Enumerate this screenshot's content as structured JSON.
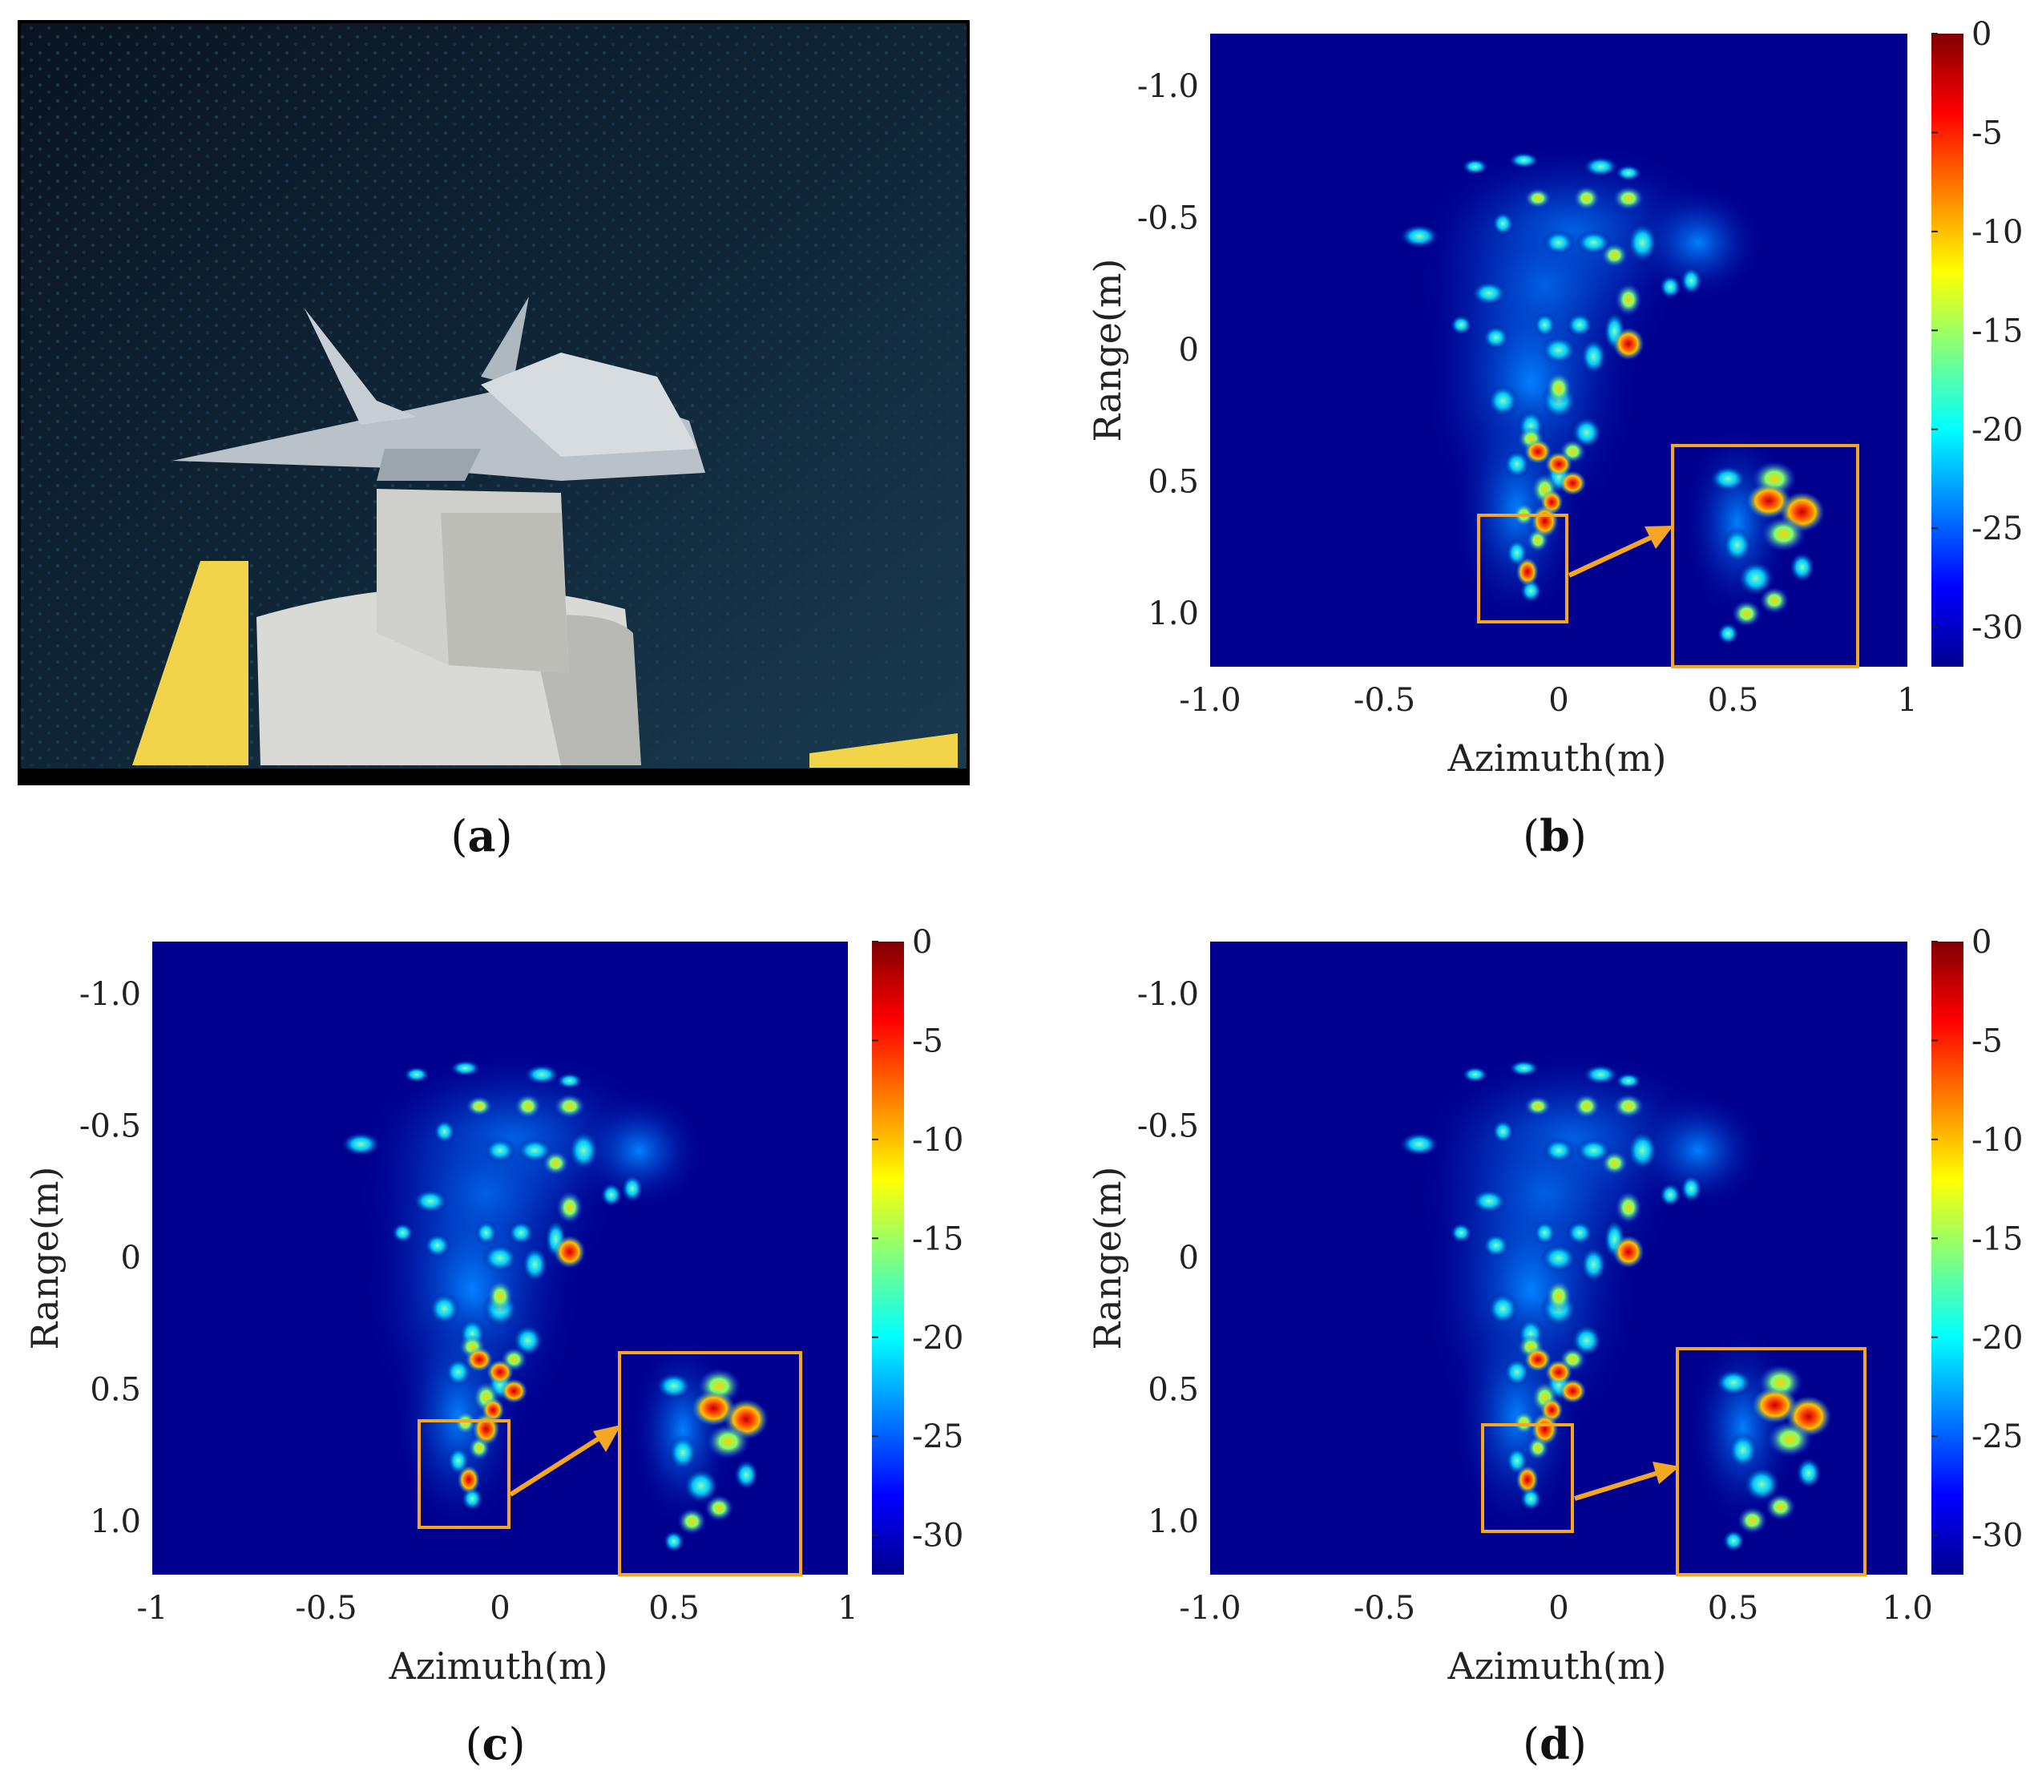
{
  "figure": {
    "panels": [
      {
        "label_open": "(",
        "label_letter": "a",
        "label_close": ")"
      },
      {
        "label_open": "(",
        "label_letter": "b",
        "label_close": ")"
      },
      {
        "label_open": "(",
        "label_letter": "c",
        "label_close": ")"
      },
      {
        "label_open": "(",
        "label_letter": "d",
        "label_close": ")"
      }
    ]
  },
  "colors": {
    "background": "#00008f",
    "zoom_box": "#f5a623",
    "frame": "#000000"
  },
  "chart_data": [
    {
      "panel": "b",
      "type": "heatmap",
      "xlabel": "Azimuth(m)",
      "ylabel": "Range(m)",
      "xlim": [
        -1.0,
        1.0
      ],
      "ylim": [
        -1.2,
        1.2
      ],
      "x_ticks": [
        "-1.0",
        "-0.5",
        "0",
        "0.5",
        "1"
      ],
      "y_ticks": [
        "-1.0",
        "-0.5",
        "0",
        "0.5",
        "1.0"
      ],
      "colorbar": {
        "range": [
          -32,
          0
        ],
        "ticks": [
          "0",
          "-5",
          "-10",
          "-15",
          "-20",
          "-25",
          "-30"
        ]
      },
      "zoom_box": {
        "azimuth": [
          -0.23,
          0.03
        ],
        "range": [
          0.62,
          1.02
        ]
      }
    },
    {
      "panel": "c",
      "type": "heatmap",
      "xlabel": "Azimuth(m)",
      "ylabel": "Range(m)",
      "xlim": [
        -1.0,
        1.0
      ],
      "ylim": [
        -1.2,
        1.2
      ],
      "x_ticks": [
        "-1",
        "-0.5",
        "0",
        "0.5",
        "1"
      ],
      "y_ticks": [
        "-1.0",
        "-0.5",
        "0",
        "0.5",
        "1.0"
      ],
      "colorbar": {
        "range": [
          -32,
          0
        ],
        "ticks": [
          "0",
          "-5",
          "-10",
          "-15",
          "-20",
          "-25",
          "-30"
        ]
      },
      "zoom_box": {
        "azimuth": [
          -0.23,
          0.03
        ],
        "range": [
          0.62,
          1.02
        ]
      }
    },
    {
      "panel": "d",
      "type": "heatmap",
      "xlabel": "Azimuth(m)",
      "ylabel": "Range(m)",
      "xlim": [
        -1.0,
        1.0
      ],
      "ylim": [
        -1.2,
        1.2
      ],
      "x_ticks": [
        "-1.0",
        "-0.5",
        "0",
        "0.5",
        "1.0"
      ],
      "y_ticks": [
        "-1.0",
        "-0.5",
        "0",
        "0.5",
        "1.0"
      ],
      "colorbar": {
        "range": [
          -32,
          0
        ],
        "ticks": [
          "0",
          "-5",
          "-10",
          "-15",
          "-20",
          "-25",
          "-30"
        ]
      },
      "zoom_box": {
        "azimuth": [
          -0.23,
          0.03
        ],
        "range": [
          0.62,
          1.02
        ]
      }
    }
  ]
}
